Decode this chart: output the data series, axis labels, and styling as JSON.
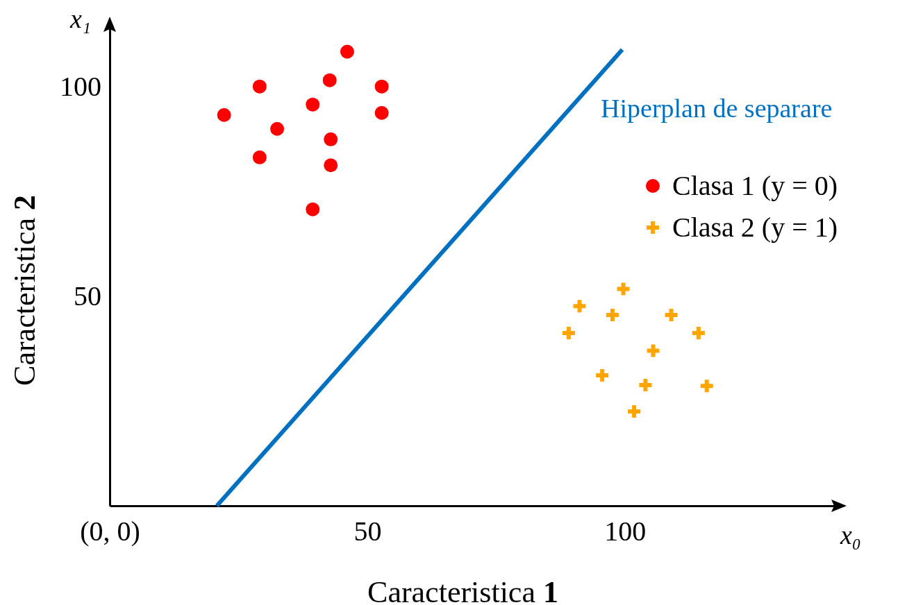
{
  "chart_data": {
    "type": "scatter",
    "xlabel": "Caracteristica 1",
    "ylabel": "Caracteristica 2",
    "xlim": [
      0,
      142.5
    ],
    "ylim": [
      0,
      116
    ],
    "xticks": [
      {
        "value": 0,
        "label": "(0, 0)"
      },
      50,
      100
    ],
    "yticks": [
      50,
      100
    ],
    "grid": false,
    "legend": "top right",
    "annotations": [
      "x₀",
      "x₁"
    ],
    "series": [
      {
        "name": "Clasa 1 (y = 0)",
        "color": "#ff0000",
        "marker": "circle",
        "x": [
          22.2,
          29.1,
          29.1,
          32.5,
          39.4,
          39.4,
          42.7,
          42.9,
          42.9,
          46.1,
          52.8,
          52.8
        ],
        "values": [
          93.2,
          100,
          83.1,
          89.9,
          95.7,
          70.7,
          101.5,
          87.4,
          81.2,
          108.3,
          100,
          93.7
        ]
      },
      {
        "name": "Clasa 2 (y = 1)",
        "color": "#ffa500",
        "marker": "cross",
        "x": [
          99.7,
          91.2,
          97.6,
          109.0,
          89.1,
          114.3,
          105.5,
          95.6,
          104.0,
          115.9,
          101.8
        ],
        "values": [
          51.7,
          47.6,
          45.5,
          45.5,
          41.2,
          41.2,
          37.0,
          31.1,
          28.8,
          28.6,
          22.5
        ]
      },
      {
        "name": "Hiperplan de separare",
        "type": "line",
        "color": "#0070c0",
        "x": [
          20.8,
          99.5
        ],
        "values": [
          0,
          108.8
        ]
      }
    ]
  }
}
